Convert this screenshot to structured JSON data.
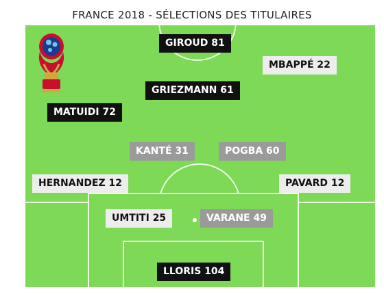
{
  "title": "FRANCE 2018 - SÉLECTIONS DES TITULAIRES",
  "colors": {
    "pitch": "#7ed957",
    "label_dark": "#111111",
    "label_light": "#ededed",
    "label_mid": "#9a9a9a"
  },
  "logo": {
    "icon": "world-cup-trophy-icon"
  },
  "players": {
    "giroud": "GIROUD 81",
    "mbappe": "MBAPPÉ 22",
    "griezmann": "GRIEZMANN 61",
    "matuidi": "MATUIDI 72",
    "kante": "KANTÉ 31",
    "pogba": "POGBA 60",
    "hernandez": "HERNANDEZ 12",
    "pavard": "PAVARD 12",
    "umtiti": "UMTITI 25",
    "varane": "VARANE 49",
    "lloris": "LLORIS 104"
  }
}
